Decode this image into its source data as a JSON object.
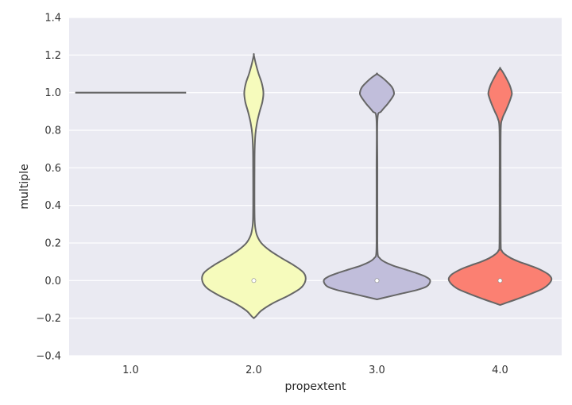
{
  "chart_data": {
    "type": "violin",
    "title": "",
    "xlabel": "propextent",
    "ylabel": "multiple",
    "ylim": [
      -0.4,
      1.4
    ],
    "yticks": [
      -0.4,
      -0.2,
      0.0,
      0.2,
      0.4,
      0.6,
      0.8,
      1.0,
      1.2,
      1.4
    ],
    "ytick_labels": [
      "−0.4",
      "−0.2",
      "0.0",
      "0.2",
      "0.4",
      "0.6",
      "0.8",
      "1.0",
      "1.2",
      "1.4"
    ],
    "categories": [
      "1.0",
      "2.0",
      "3.0",
      "4.0"
    ],
    "grid": true,
    "style": {
      "background": "#eaeaf2",
      "grid_color": "#ffffff",
      "outline_color": "#666666"
    },
    "violins": [
      {
        "category": "1.0",
        "color": "#8dd3c7",
        "median": 1.0,
        "degenerate_value": 1.0,
        "profile": []
      },
      {
        "category": "2.0",
        "color": "#f6fbbc",
        "median": 0.0,
        "profile": [
          [
            -0.2,
            0.0
          ],
          [
            -0.19,
            0.04
          ],
          [
            -0.16,
            0.14
          ],
          [
            -0.12,
            0.36
          ],
          [
            -0.08,
            0.65
          ],
          [
            -0.04,
            0.88
          ],
          [
            0.0,
            0.97
          ],
          [
            0.04,
            0.94
          ],
          [
            0.08,
            0.76
          ],
          [
            0.12,
            0.52
          ],
          [
            0.16,
            0.3
          ],
          [
            0.2,
            0.14
          ],
          [
            0.24,
            0.06
          ],
          [
            0.28,
            0.028
          ],
          [
            0.32,
            0.016
          ],
          [
            0.4,
            0.012
          ],
          [
            0.5,
            0.012
          ],
          [
            0.6,
            0.013
          ],
          [
            0.7,
            0.016
          ],
          [
            0.78,
            0.03
          ],
          [
            0.84,
            0.06
          ],
          [
            0.9,
            0.11
          ],
          [
            0.95,
            0.16
          ],
          [
            1.0,
            0.18
          ],
          [
            1.05,
            0.15
          ],
          [
            1.1,
            0.09
          ],
          [
            1.15,
            0.04
          ],
          [
            1.2,
            0.0
          ]
        ]
      },
      {
        "category": "3.0",
        "color": "#c1bedb",
        "median": 0.0,
        "profile": [
          [
            -0.1,
            0.0
          ],
          [
            -0.09,
            0.15
          ],
          [
            -0.07,
            0.45
          ],
          [
            -0.05,
            0.75
          ],
          [
            -0.03,
            0.94
          ],
          [
            0.0,
            1.0
          ],
          [
            0.02,
            0.92
          ],
          [
            0.04,
            0.74
          ],
          [
            0.06,
            0.52
          ],
          [
            0.08,
            0.3
          ],
          [
            0.1,
            0.14
          ],
          [
            0.12,
            0.05
          ],
          [
            0.15,
            0.012
          ],
          [
            0.3,
            0.008
          ],
          [
            0.6,
            0.008
          ],
          [
            0.86,
            0.01
          ],
          [
            0.9,
            0.08
          ],
          [
            0.94,
            0.2
          ],
          [
            0.98,
            0.3
          ],
          [
            1.0,
            0.32
          ],
          [
            1.03,
            0.28
          ],
          [
            1.06,
            0.18
          ],
          [
            1.08,
            0.1
          ],
          [
            1.1,
            0.0
          ]
        ]
      },
      {
        "category": "4.0",
        "color": "#fb8072",
        "median": 0.0,
        "profile": [
          [
            -0.13,
            0.0
          ],
          [
            -0.12,
            0.1
          ],
          [
            -0.1,
            0.3
          ],
          [
            -0.07,
            0.58
          ],
          [
            -0.04,
            0.82
          ],
          [
            0.0,
            0.96
          ],
          [
            0.03,
            0.92
          ],
          [
            0.06,
            0.74
          ],
          [
            0.08,
            0.56
          ],
          [
            0.1,
            0.36
          ],
          [
            0.12,
            0.2
          ],
          [
            0.14,
            0.09
          ],
          [
            0.16,
            0.03
          ],
          [
            0.2,
            0.012
          ],
          [
            0.5,
            0.01
          ],
          [
            0.8,
            0.012
          ],
          [
            0.86,
            0.04
          ],
          [
            0.9,
            0.1
          ],
          [
            0.94,
            0.16
          ],
          [
            0.98,
            0.21
          ],
          [
            1.0,
            0.22
          ],
          [
            1.04,
            0.18
          ],
          [
            1.08,
            0.11
          ],
          [
            1.11,
            0.05
          ],
          [
            1.13,
            0.0
          ]
        ]
      }
    ]
  }
}
